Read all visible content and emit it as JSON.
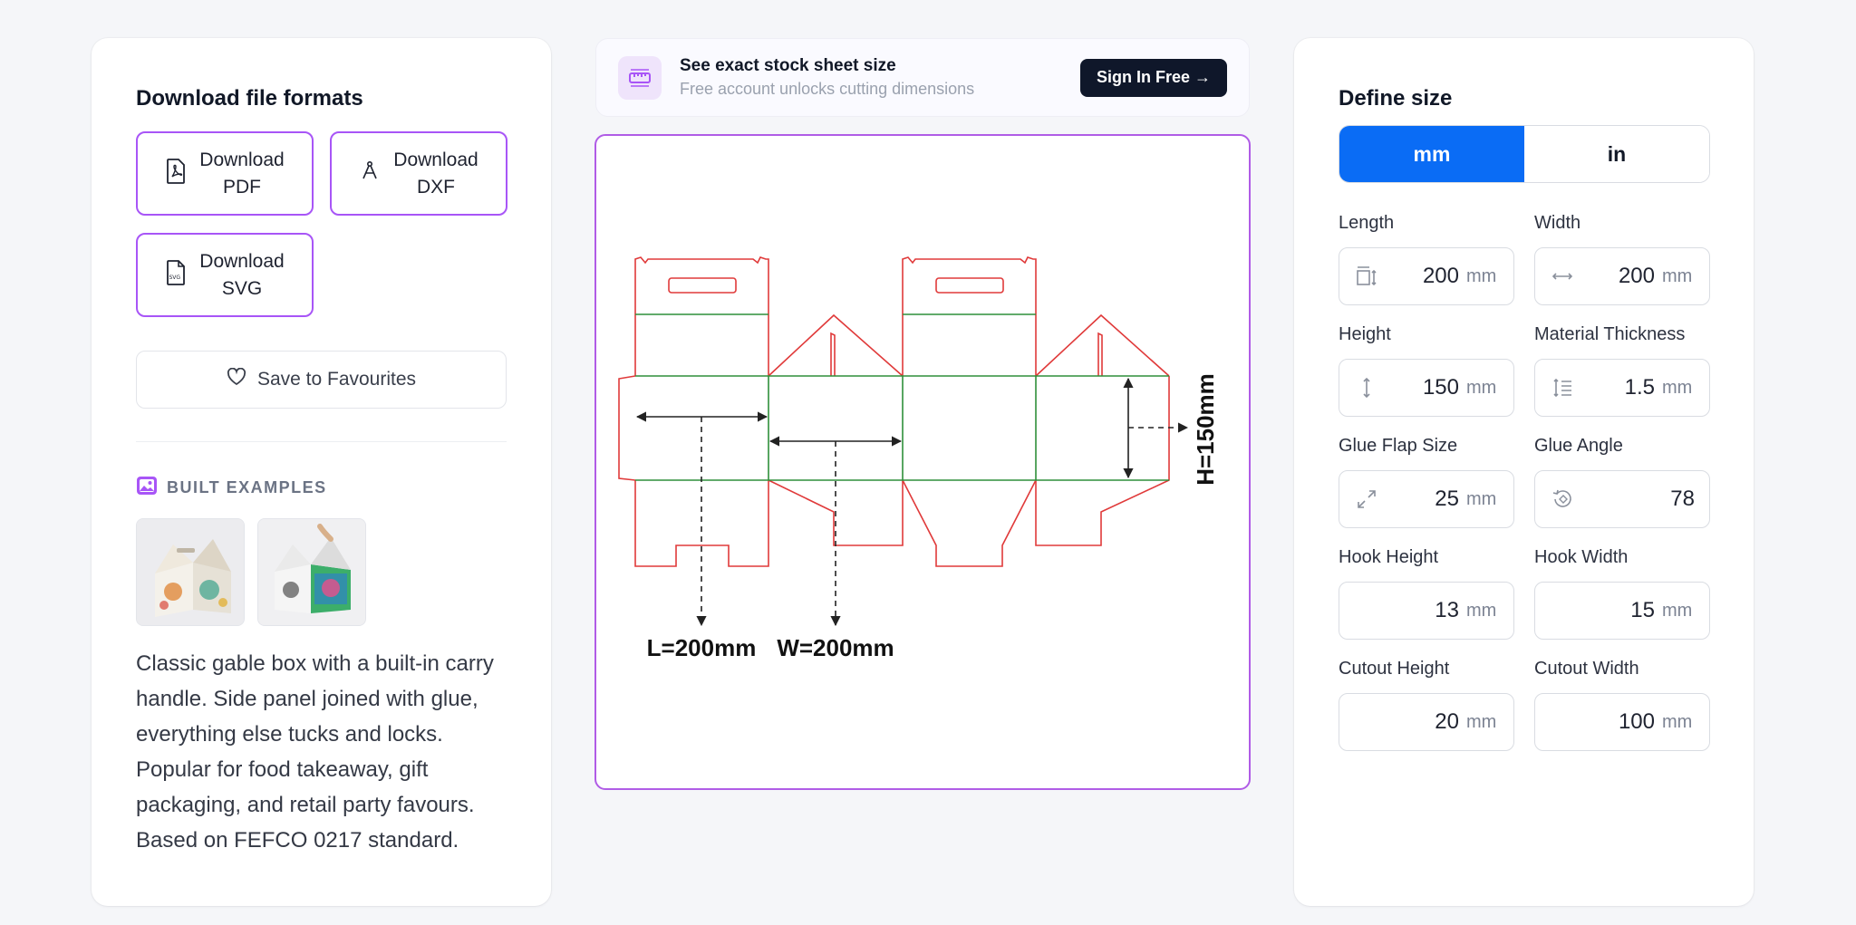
{
  "left": {
    "heading": "Download file formats",
    "downloads": [
      {
        "label": "Download\nPDF",
        "icon": "pdf-file-icon"
      },
      {
        "label": "Download\nDXF",
        "icon": "dxf-compass-icon"
      },
      {
        "label": "Download\nSVG",
        "icon": "svg-file-icon"
      }
    ],
    "favourites_label": "Save to Favourites",
    "examples_heading": "BUILT EXAMPLES",
    "description": "Classic gable box with a built-in carry handle. Side panel joined with glue, everything else tucks and locks. Popular for food takeaway, gift packaging, and retail party favours. Based on FEFCO 0217 standard."
  },
  "banner": {
    "title": "See exact stock sheet size",
    "subtitle": "Free account unlocks cutting dimensions",
    "signin_label": "Sign In Free →"
  },
  "preview": {
    "length_label": "L=200mm",
    "width_label": "W=200mm",
    "height_label": "H=150mm",
    "colors": {
      "cut": "#e03a3a",
      "fold": "#2f8f3a",
      "dimension": "#222222"
    }
  },
  "right": {
    "heading": "Define size",
    "units": {
      "mm": "mm",
      "in": "in",
      "selected": "mm"
    },
    "fields": [
      {
        "label": "Length",
        "value": "200",
        "unit": "mm",
        "icon": "length-icon"
      },
      {
        "label": "Width",
        "value": "200",
        "unit": "mm",
        "icon": "width-arrows-icon"
      },
      {
        "label": "Height",
        "value": "150",
        "unit": "mm",
        "icon": "height-arrows-icon"
      },
      {
        "label": "Material Thickness",
        "value": "1.5",
        "unit": "mm",
        "icon": "thickness-icon"
      },
      {
        "label": "Glue Flap Size",
        "value": "25",
        "unit": "mm",
        "icon": "expand-diagonal-icon"
      },
      {
        "label": "Glue Angle",
        "value": "78",
        "unit": "",
        "icon": "angle-rotate-icon"
      },
      {
        "label": "Hook Height",
        "value": "13",
        "unit": "mm",
        "icon": ""
      },
      {
        "label": "Hook Width",
        "value": "15",
        "unit": "mm",
        "icon": ""
      },
      {
        "label": "Cutout Height",
        "value": "20",
        "unit": "mm",
        "icon": ""
      },
      {
        "label": "Cutout Width",
        "value": "100",
        "unit": "mm",
        "icon": ""
      }
    ]
  },
  "theme": {
    "accent": "#a855f7",
    "primary": "#0a6cf5",
    "dark": "#0f172a"
  }
}
